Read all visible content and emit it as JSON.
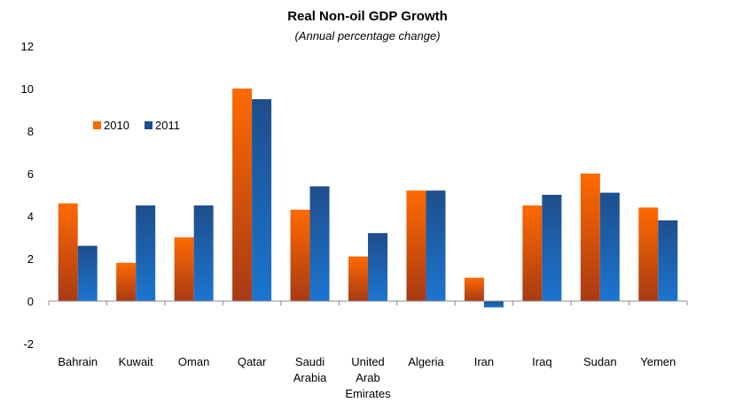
{
  "chart_data": {
    "type": "bar",
    "title": "Real Non-oil GDP Growth",
    "subtitle": "(Annual percentage change)",
    "xlabel": "",
    "ylabel": "",
    "categories": [
      [
        "Bahrain"
      ],
      [
        "Kuwait"
      ],
      [
        "Oman"
      ],
      [
        "Qatar"
      ],
      [
        "Saudi",
        "Arabia"
      ],
      [
        "United",
        "Arab",
        "Emirates"
      ],
      [
        "Algeria"
      ],
      [
        "Iran"
      ],
      [
        "Iraq"
      ],
      [
        "Sudan"
      ],
      [
        "Yemen"
      ]
    ],
    "series": [
      {
        "name": "2010",
        "values": [
          4.6,
          1.8,
          3.0,
          10.0,
          4.3,
          2.1,
          5.2,
          1.1,
          4.5,
          6.0,
          4.4
        ],
        "color_top": "#FF6A00",
        "color_bottom": "#A83A14"
      },
      {
        "name": "2011",
        "values": [
          2.6,
          4.5,
          4.5,
          9.5,
          5.4,
          3.2,
          5.2,
          -0.3,
          5.0,
          5.1,
          3.8
        ],
        "color_top": "#1F4E8C",
        "color_bottom": "#1B75D0"
      }
    ],
    "ylim": [
      -2,
      12
    ],
    "yticks": [
      -2,
      0,
      2,
      4,
      6,
      8,
      10,
      12
    ],
    "grid": false,
    "legend_position": "upper-left"
  }
}
